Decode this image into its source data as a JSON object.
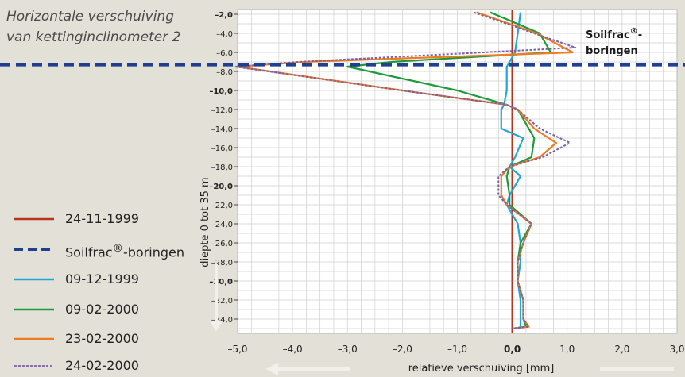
{
  "chart_data": {
    "type": "line",
    "title_lines": [
      "Horizontale verschuiving",
      "van kettinginclinometer 2"
    ],
    "xlabel": "relatieve verschuiving [mm]",
    "ylabel": "diepte 0 tot 35 m",
    "xlim": [
      -5.0,
      3.0
    ],
    "ylim": [
      -35.5,
      -1.5
    ],
    "grid": true,
    "x_ticks": [
      "–5,0",
      "–4,0",
      "–3,0",
      "–2,0",
      "–1,0",
      "0,0",
      "1,0",
      "2,0",
      "3,0"
    ],
    "x_ticks_bold": [
      "0,0"
    ],
    "y_ticks": [
      "–2,0",
      "–4,0",
      "–6,0",
      "–8,0",
      "–10,0",
      "–12,0",
      "–14,0",
      "–16,0",
      "–18,0",
      "–20,0",
      "–22,0",
      "–24,0",
      "–26,0",
      "–28,0",
      "–30,0",
      "–32,0",
      "–34,0"
    ],
    "y_ticks_bold": [
      "–2,0",
      "–10,0",
      "–20,0",
      "–30,0"
    ],
    "annotation": {
      "line1": "Soilfrac",
      "line1_sup": "®",
      "line1_end": "-",
      "line2": "boringen"
    },
    "soilfrac_depth": -7.3,
    "series": [
      {
        "name": "24-11-1999",
        "color": "#b5361c",
        "dash": "solid",
        "x": [
          0.0,
          0.0
        ],
        "y": [
          -1.5,
          -35.5
        ]
      },
      {
        "name": "09-12-1999",
        "color": "#1ea7d8",
        "dash": "solid",
        "x": [
          0.15,
          0.1,
          0.05,
          -0.05,
          -0.1,
          -0.1,
          -0.15,
          -0.2,
          -0.2,
          0.2,
          0.05,
          -0.05,
          0.15,
          -0.05,
          -0.1,
          0.1,
          0.15,
          0.15,
          0.1,
          0.15,
          0.15,
          0.15,
          0.1
        ],
        "y": [
          -1.8,
          -4.0,
          -6.0,
          -7.0,
          -7.5,
          -10.0,
          -11.5,
          -12.0,
          -14.0,
          -15.0,
          -17.0,
          -18.0,
          -19.0,
          -21.0,
          -22.0,
          -24.0,
          -26.0,
          -28.0,
          -30.0,
          -32.0,
          -34.0,
          -34.8,
          -35.0
        ]
      },
      {
        "name": "09-02-2000",
        "color": "#1c9a37",
        "dash": "solid",
        "x": [
          -0.4,
          0.5,
          0.7,
          -2.2,
          -3.0,
          -1.0,
          -0.1,
          0.1,
          0.3,
          0.4,
          0.35,
          -0.05,
          -0.1,
          -0.05,
          -0.05,
          0.35,
          0.15,
          0.1,
          0.1,
          0.2,
          0.2,
          0.25,
          0.0
        ],
        "y": [
          -1.8,
          -4.0,
          -6.0,
          -7.0,
          -7.5,
          -10.0,
          -11.5,
          -12.0,
          -14.0,
          -15.0,
          -17.0,
          -18.0,
          -19.0,
          -21.0,
          -22.0,
          -24.0,
          -26.0,
          -28.0,
          -30.0,
          -32.0,
          -34.0,
          -34.8,
          -35.0
        ]
      },
      {
        "name": "23-02-2000",
        "color": "#ec7b22",
        "dash": "solid",
        "x": [
          -0.65,
          0.45,
          1.1,
          -3.8,
          -5.0,
          -2.0,
          -0.1,
          0.1,
          0.4,
          0.8,
          0.5,
          -0.05,
          -0.2,
          -0.2,
          -0.1,
          0.35,
          0.2,
          0.1,
          0.1,
          0.2,
          0.2,
          0.3,
          0.0
        ],
        "y": [
          -1.8,
          -4.0,
          -6.0,
          -7.0,
          -7.5,
          -10.0,
          -11.5,
          -12.0,
          -14.0,
          -15.5,
          -17.0,
          -18.0,
          -19.0,
          -21.0,
          -22.0,
          -24.0,
          -26.0,
          -28.0,
          -30.0,
          -32.0,
          -34.0,
          -34.8,
          -35.0
        ]
      },
      {
        "name": "24-02-2000",
        "color": "#7b5ea8",
        "dash": "dashed",
        "x": [
          -0.7,
          0.4,
          1.15,
          -3.9,
          -5.05,
          -2.0,
          -0.1,
          0.1,
          0.5,
          1.05,
          0.55,
          -0.05,
          -0.25,
          -0.25,
          -0.1,
          0.35,
          0.2,
          0.1,
          0.1,
          0.2,
          0.2,
          0.3,
          0.0
        ],
        "y": [
          -1.8,
          -4.0,
          -5.5,
          -7.0,
          -7.5,
          -10.0,
          -11.5,
          -12.0,
          -14.0,
          -15.5,
          -17.0,
          -18.0,
          -19.0,
          -21.0,
          -22.0,
          -24.0,
          -26.0,
          -28.0,
          -30.0,
          -32.0,
          -34.0,
          -34.8,
          -35.0
        ]
      }
    ],
    "legend": [
      {
        "label": "24-11-1999",
        "color": "#b5361c",
        "dash": "solid"
      },
      {
        "label_pre": "Soilfrac",
        "label_sup": "®",
        "label_post": "-boringen",
        "color": "#1f3f8f",
        "dash": "bigdash"
      },
      {
        "label": "09-12-1999",
        "color": "#1ea7d8",
        "dash": "solid"
      },
      {
        "label": "09-02-2000",
        "color": "#1c9a37",
        "dash": "solid"
      },
      {
        "label": "23-02-2000",
        "color": "#ec7b22",
        "dash": "solid"
      },
      {
        "label": "24-02-2000",
        "color": "#7b5ea8",
        "dash": "dashed"
      }
    ]
  }
}
